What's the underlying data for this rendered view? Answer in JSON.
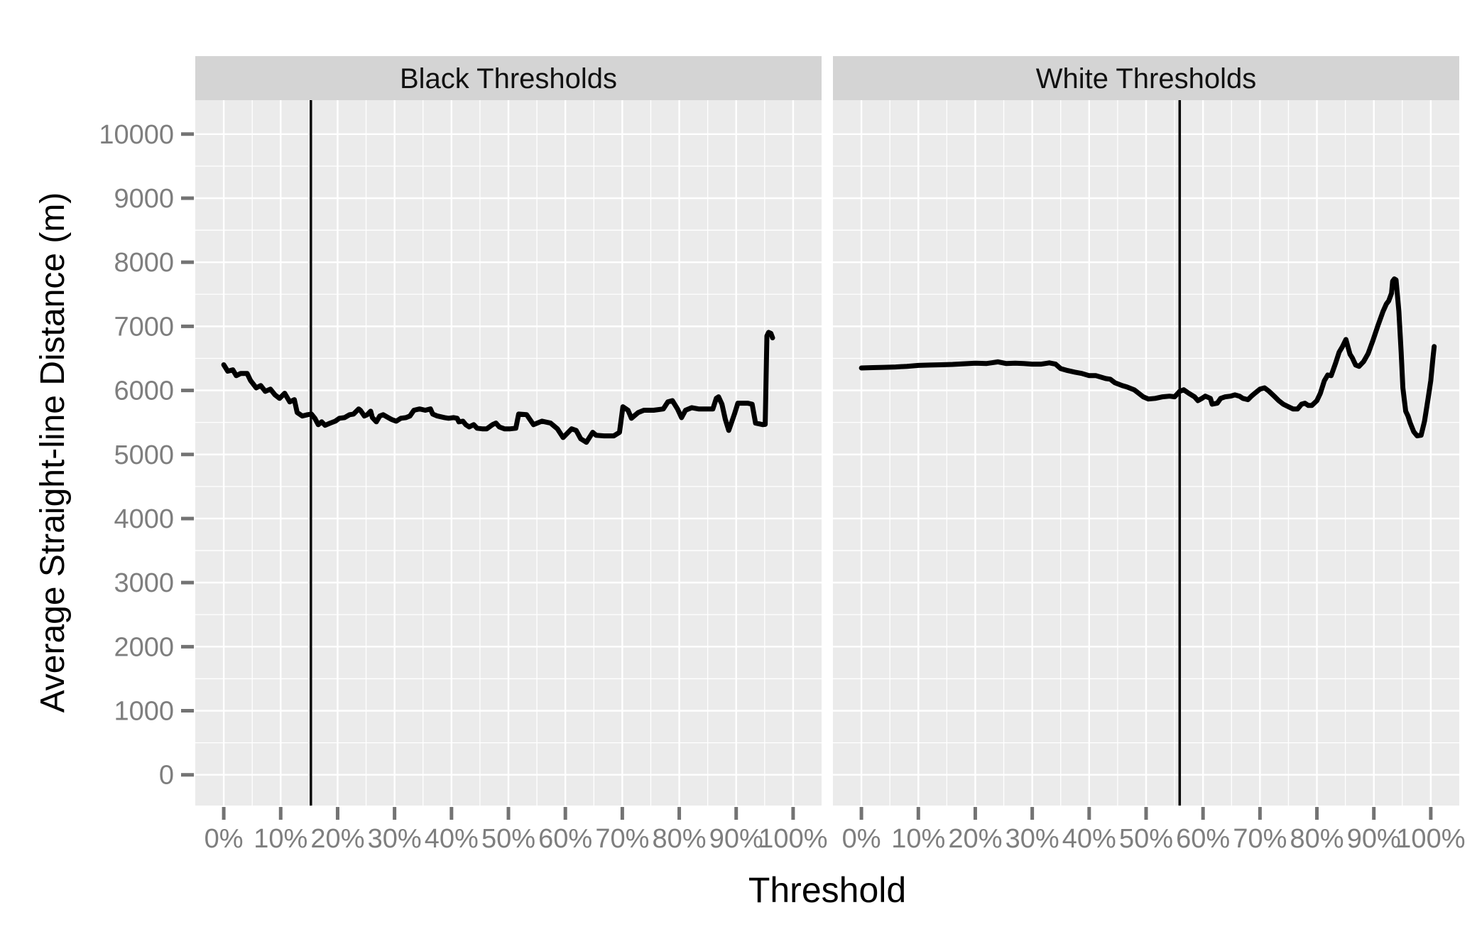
{
  "chart_data": {
    "type": "line",
    "title": "",
    "xlabel": "Threshold",
    "ylabel": "Average Straight-line Distance (m)",
    "legend": "none",
    "grid": "major-and-minor-white-on-gray",
    "xlim": [
      -5,
      105
    ],
    "ylim": [
      -480,
      10530
    ],
    "x_tick_values": [
      0,
      10,
      20,
      30,
      40,
      50,
      60,
      70,
      80,
      90,
      100
    ],
    "x_tick_labels": [
      "0%",
      "10%",
      "20%",
      "30%",
      "40%",
      "50%",
      "60%",
      "70%",
      "80%",
      "90%",
      "100%"
    ],
    "y_tick_values": [
      0,
      1000,
      2000,
      3000,
      4000,
      5000,
      6000,
      7000,
      8000,
      9000,
      10000
    ],
    "y_tick_labels": [
      "0",
      "1000",
      "2000",
      "3000",
      "4000",
      "5000",
      "6000",
      "7000",
      "8000",
      "9000",
      "10000"
    ],
    "x_minor_tick_values": [
      5,
      15,
      25,
      35,
      45,
      55,
      65,
      75,
      85,
      95
    ],
    "y_minor_tick_values": [
      500,
      1500,
      2500,
      3500,
      4500,
      5500,
      6500,
      7500,
      8500,
      9500
    ],
    "colors": {
      "panel_bg": "#ebebeb",
      "strip_bg": "#d4d4d4",
      "grid_major": "#ffffff",
      "grid_minor": "#ffffff",
      "series_line": "#000000",
      "vline": "#000000",
      "axis_text": "#7e7e7e",
      "tick_mark": "#737373",
      "strip_text": "#111111",
      "axis_title": "#000000"
    },
    "facets": [
      {
        "label": "Black Thresholds",
        "vline_x": 15.3,
        "series_name": "average straight-line distance",
        "points": [
          [
            0,
            6400
          ],
          [
            0.7,
            6300
          ],
          [
            1.6,
            6320
          ],
          [
            2.2,
            6230
          ],
          [
            3,
            6265
          ],
          [
            4.1,
            6265
          ],
          [
            4.7,
            6155
          ],
          [
            5.7,
            6040
          ],
          [
            6.5,
            6075
          ],
          [
            7.3,
            5985
          ],
          [
            8.2,
            6020
          ],
          [
            9,
            5930
          ],
          [
            9.8,
            5875
          ],
          [
            10.7,
            5955
          ],
          [
            11.6,
            5820
          ],
          [
            12.4,
            5855
          ],
          [
            12.9,
            5655
          ],
          [
            13.8,
            5600
          ],
          [
            14.7,
            5620
          ],
          [
            15.4,
            5630
          ],
          [
            16,
            5565
          ],
          [
            16.6,
            5465
          ],
          [
            17.2,
            5510
          ],
          [
            17.8,
            5455
          ],
          [
            18.7,
            5490
          ],
          [
            19.6,
            5520
          ],
          [
            20.3,
            5565
          ],
          [
            21.2,
            5575
          ],
          [
            22.1,
            5620
          ],
          [
            22.8,
            5630
          ],
          [
            23.7,
            5710
          ],
          [
            24,
            5690
          ],
          [
            24.7,
            5600
          ],
          [
            25.2,
            5620
          ],
          [
            25.8,
            5675
          ],
          [
            26.1,
            5575
          ],
          [
            26.8,
            5510
          ],
          [
            27.4,
            5600
          ],
          [
            28,
            5620
          ],
          [
            28.9,
            5575
          ],
          [
            29.5,
            5545
          ],
          [
            30.3,
            5520
          ],
          [
            31.1,
            5565
          ],
          [
            32,
            5575
          ],
          [
            32.7,
            5600
          ],
          [
            33.4,
            5690
          ],
          [
            34.4,
            5710
          ],
          [
            35.4,
            5690
          ],
          [
            36.3,
            5710
          ],
          [
            36.7,
            5630
          ],
          [
            37.5,
            5600
          ],
          [
            38.8,
            5575
          ],
          [
            39.5,
            5565
          ],
          [
            40.4,
            5575
          ],
          [
            41,
            5565
          ],
          [
            41.3,
            5510
          ],
          [
            42,
            5520
          ],
          [
            42.5,
            5465
          ],
          [
            43.1,
            5430
          ],
          [
            43.9,
            5465
          ],
          [
            44.5,
            5410
          ],
          [
            45.4,
            5400
          ],
          [
            46.2,
            5400
          ],
          [
            47.2,
            5465
          ],
          [
            47.8,
            5490
          ],
          [
            48.4,
            5430
          ],
          [
            49.3,
            5400
          ],
          [
            50.3,
            5400
          ],
          [
            51.3,
            5410
          ],
          [
            51.8,
            5630
          ],
          [
            53.2,
            5620
          ],
          [
            54.4,
            5465
          ],
          [
            55.9,
            5520
          ],
          [
            57.4,
            5490
          ],
          [
            58.6,
            5400
          ],
          [
            59.6,
            5265
          ],
          [
            61.1,
            5400
          ],
          [
            61.9,
            5375
          ],
          [
            62.7,
            5245
          ],
          [
            63.7,
            5190
          ],
          [
            64.8,
            5345
          ],
          [
            65.4,
            5300
          ],
          [
            66.8,
            5290
          ],
          [
            68.5,
            5290
          ],
          [
            69.5,
            5345
          ],
          [
            70.1,
            5745
          ],
          [
            71,
            5690
          ],
          [
            71.6,
            5565
          ],
          [
            72.8,
            5655
          ],
          [
            73.8,
            5690
          ],
          [
            75.5,
            5690
          ],
          [
            77.2,
            5710
          ],
          [
            78,
            5820
          ],
          [
            78.8,
            5840
          ],
          [
            79.7,
            5710
          ],
          [
            80.4,
            5575
          ],
          [
            81.1,
            5690
          ],
          [
            82.2,
            5730
          ],
          [
            83.4,
            5710
          ],
          [
            85.9,
            5710
          ],
          [
            86.5,
            5875
          ],
          [
            86.9,
            5900
          ],
          [
            87.5,
            5785
          ],
          [
            88.1,
            5545
          ],
          [
            88.7,
            5375
          ],
          [
            89.7,
            5630
          ],
          [
            90.3,
            5800
          ],
          [
            92,
            5800
          ],
          [
            92.8,
            5785
          ],
          [
            93.4,
            5490
          ],
          [
            94.7,
            5465
          ],
          [
            95.1,
            5470
          ],
          [
            95.4,
            6850
          ],
          [
            95.7,
            6905
          ],
          [
            96.1,
            6890
          ],
          [
            96.4,
            6820
          ]
        ]
      },
      {
        "label": "White Thresholds",
        "vline_x": 55.9,
        "series_name": "average straight-line distance",
        "points": [
          [
            0,
            6350
          ],
          [
            2,
            6355
          ],
          [
            4,
            6360
          ],
          [
            6,
            6365
          ],
          [
            8,
            6375
          ],
          [
            10,
            6390
          ],
          [
            12,
            6395
          ],
          [
            14,
            6400
          ],
          [
            16,
            6405
          ],
          [
            18,
            6415
          ],
          [
            20,
            6425
          ],
          [
            22,
            6420
          ],
          [
            24,
            6445
          ],
          [
            25.4,
            6420
          ],
          [
            27,
            6425
          ],
          [
            28.5,
            6420
          ],
          [
            30,
            6410
          ],
          [
            31.6,
            6410
          ],
          [
            33,
            6430
          ],
          [
            34.1,
            6410
          ],
          [
            35,
            6340
          ],
          [
            36.2,
            6310
          ],
          [
            37.5,
            6285
          ],
          [
            38.7,
            6265
          ],
          [
            40,
            6230
          ],
          [
            41.2,
            6230
          ],
          [
            42.9,
            6185
          ],
          [
            43.7,
            6175
          ],
          [
            44.5,
            6120
          ],
          [
            45.8,
            6075
          ],
          [
            46.6,
            6055
          ],
          [
            47.9,
            6010
          ],
          [
            48.7,
            5955
          ],
          [
            49.5,
            5900
          ],
          [
            50.4,
            5865
          ],
          [
            51.6,
            5875
          ],
          [
            52.9,
            5900
          ],
          [
            54.1,
            5910
          ],
          [
            55,
            5900
          ],
          [
            55.9,
            5985
          ],
          [
            56.6,
            6010
          ],
          [
            57.5,
            5955
          ],
          [
            58.5,
            5900
          ],
          [
            59.1,
            5840
          ],
          [
            59.8,
            5875
          ],
          [
            60.4,
            5910
          ],
          [
            61.3,
            5875
          ],
          [
            61.6,
            5785
          ],
          [
            62.5,
            5800
          ],
          [
            63.1,
            5875
          ],
          [
            63.9,
            5900
          ],
          [
            64.8,
            5910
          ],
          [
            65.6,
            5930
          ],
          [
            66.4,
            5910
          ],
          [
            67,
            5875
          ],
          [
            67.9,
            5855
          ],
          [
            68.5,
            5910
          ],
          [
            69.1,
            5955
          ],
          [
            70,
            6020
          ],
          [
            70.8,
            6040
          ],
          [
            71.6,
            5985
          ],
          [
            72.5,
            5910
          ],
          [
            73.3,
            5840
          ],
          [
            74.1,
            5785
          ],
          [
            75,
            5745
          ],
          [
            75.8,
            5710
          ],
          [
            76.6,
            5710
          ],
          [
            77.3,
            5785
          ],
          [
            77.9,
            5800
          ],
          [
            78.5,
            5765
          ],
          [
            79.1,
            5765
          ],
          [
            80,
            5840
          ],
          [
            80.6,
            5955
          ],
          [
            81.3,
            6150
          ],
          [
            81.9,
            6240
          ],
          [
            82.5,
            6230
          ],
          [
            83.3,
            6430
          ],
          [
            83.9,
            6595
          ],
          [
            84.5,
            6685
          ],
          [
            85.1,
            6795
          ],
          [
            85.8,
            6565
          ],
          [
            86.2,
            6510
          ],
          [
            86.8,
            6395
          ],
          [
            87.4,
            6375
          ],
          [
            88.2,
            6450
          ],
          [
            89,
            6575
          ],
          [
            89.9,
            6795
          ],
          [
            90.7,
            7005
          ],
          [
            91.6,
            7230
          ],
          [
            92.2,
            7350
          ],
          [
            92.6,
            7395
          ],
          [
            93.1,
            7515
          ],
          [
            93.3,
            7705
          ],
          [
            93.6,
            7740
          ],
          [
            93.9,
            7725
          ],
          [
            94.4,
            7230
          ],
          [
            94.8,
            6595
          ],
          [
            95.1,
            6040
          ],
          [
            95.6,
            5675
          ],
          [
            96,
            5600
          ],
          [
            96.4,
            5490
          ],
          [
            97,
            5355
          ],
          [
            97.6,
            5290
          ],
          [
            98.3,
            5300
          ],
          [
            98.9,
            5520
          ],
          [
            99.5,
            5855
          ],
          [
            100,
            6150
          ],
          [
            100.4,
            6520
          ],
          [
            100.6,
            6685
          ]
        ]
      }
    ]
  }
}
